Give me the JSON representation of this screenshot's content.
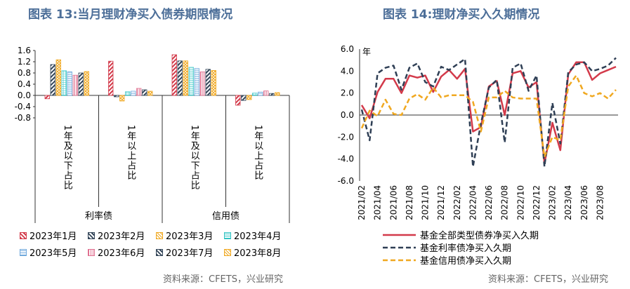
{
  "titles": {
    "left": "图表 13:当月理财净买入债券期限情况",
    "right": "图表 14:理财净买入久期情况"
  },
  "sources": {
    "left": "资料来源：CFETS，兴业研究",
    "right": "资料来源：CFETS，兴业研究"
  },
  "chart_data": [
    {
      "type": "bar",
      "title": "图表 13:当月理财净买入债券期限情况",
      "groups": [
        "利率债",
        "信用债"
      ],
      "categories": [
        "1年及以下占比",
        "1年以上占比",
        "1年及以下占比",
        "1年以上占比"
      ],
      "yticks": [
        "1.6",
        "1.2",
        "0.8",
        "0.4",
        "0.0",
        "-0.4",
        "-0.8"
      ],
      "ylim": [
        -0.8,
        1.6
      ],
      "series": [
        {
          "name": "2023年1月",
          "color": "#d33a4a",
          "pattern": "diag",
          "values": [
            -0.12,
            1.22,
            1.45,
            -0.35
          ]
        },
        {
          "name": "2023年2月",
          "color": "#344659",
          "pattern": "diag",
          "values": [
            1.1,
            -0.05,
            1.23,
            -0.18
          ]
        },
        {
          "name": "2023年3月",
          "color": "#f0a820",
          "pattern": "cross",
          "values": [
            1.27,
            -0.2,
            1.23,
            -0.15
          ]
        },
        {
          "name": "2023年4月",
          "color": "#33c4c4",
          "pattern": "grid",
          "values": [
            0.88,
            0.13,
            1.0,
            0.08
          ]
        },
        {
          "name": "2023年5月",
          "color": "#6fa8dc",
          "pattern": "hlines",
          "values": [
            0.84,
            0.15,
            0.96,
            0.12
          ]
        },
        {
          "name": "2023年6月",
          "color": "#e07090",
          "pattern": "vlines",
          "values": [
            0.72,
            0.25,
            0.84,
            0.16
          ]
        },
        {
          "name": "2023年7月",
          "color": "#344659",
          "pattern": "diag",
          "values": [
            0.8,
            0.2,
            0.93,
            0.07
          ]
        },
        {
          "name": "2023年8月",
          "color": "#f0a820",
          "pattern": "cross",
          "values": [
            0.85,
            0.15,
            0.89,
            0.1
          ]
        }
      ]
    },
    {
      "type": "line",
      "title": "图表 14:理财净买入久期情况",
      "unit_label": "年",
      "ylim": [
        -6,
        6
      ],
      "yticks": [
        "6.0",
        "4.0",
        "2.0",
        "0.0",
        "-2.0",
        "-4.0",
        "-6.0"
      ],
      "x_labels": [
        "2021/02",
        "2021/04",
        "2021/06",
        "2021/08",
        "2021/10",
        "2021/12",
        "2022/02",
        "2022/04",
        "2022/06",
        "2022/08",
        "2022/10",
        "2022/12",
        "2023/02",
        "2023/04",
        "2023/06",
        "2023/08"
      ],
      "series": [
        {
          "name": "基金全部类型债券净买入久期",
          "color": "#d33a4a",
          "dash": "solid",
          "values": [
            0.9,
            -0.3,
            2.1,
            3.3,
            3.3,
            2.0,
            3.6,
            3.4,
            3.6,
            2.1,
            3.5,
            4.1,
            3.3,
            4.2,
            -1.5,
            -1.1,
            2.6,
            3.1,
            0.0,
            3.8,
            4.0,
            2.5,
            3.0,
            -4.4,
            -0.7,
            -3.2,
            3.7,
            4.8,
            4.8,
            3.2,
            3.8,
            4.1,
            4.4
          ]
        },
        {
          "name": "基金利率债净买入久期",
          "color": "#2f3f55",
          "dash": "dashed",
          "values": [
            0.5,
            -2.3,
            3.8,
            4.3,
            4.5,
            2.3,
            4.3,
            4.7,
            3.0,
            2.6,
            4.4,
            4.1,
            4.6,
            5.1,
            -4.7,
            -0.8,
            2.5,
            3.2,
            -2.5,
            4.3,
            4.7,
            2.2,
            3.6,
            -4.7,
            1.1,
            -2.6,
            3.9,
            4.6,
            4.8,
            4.0,
            4.2,
            4.5,
            5.2
          ]
        },
        {
          "name": "基金信用债净买入久期",
          "color": "#f0a820",
          "dash": "dashed",
          "values": [
            -1.2,
            0.4,
            -0.1,
            1.4,
            0.1,
            0.0,
            1.5,
            1.9,
            1.4,
            2.5,
            1.6,
            1.8,
            1.8,
            1.8,
            1.2,
            -1.5,
            1.6,
            1.6,
            2.2,
            1.6,
            1.5,
            1.5,
            1.5,
            -3.8,
            -2.0,
            -2.3,
            2.6,
            3.6,
            2.0,
            1.7,
            2.0,
            1.5,
            2.3
          ]
        }
      ]
    }
  ]
}
